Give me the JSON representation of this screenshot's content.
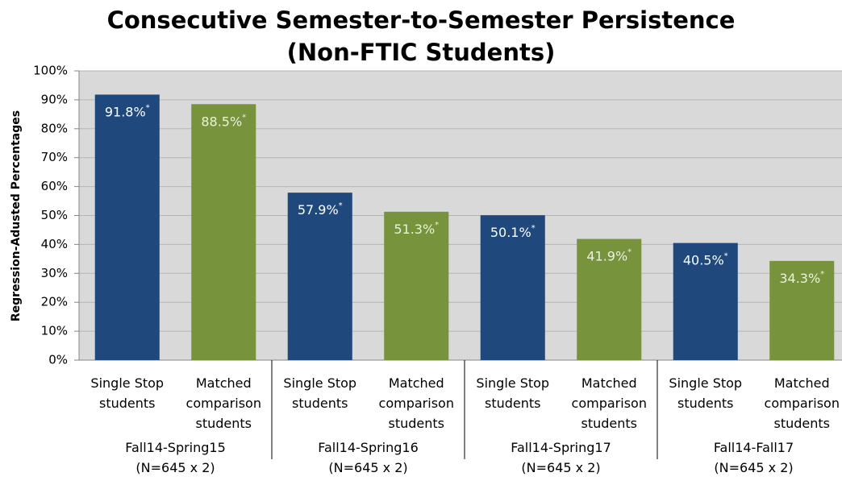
{
  "chart_data": {
    "type": "bar",
    "title": [
      "Consecutive Semester-to-Semester Persistence",
      "(Non-FTIC Students)"
    ],
    "y_label": "Regression-Adusted Percentages",
    "categories": [
      "Fall14-Spring15",
      "Fall14-Spring16",
      "Fall14-Spring17",
      "Fall14-Fall17"
    ],
    "category_sublabels": [
      "(N=645 x 2)",
      "(N=645 x 2)",
      "(N=645 x 2)",
      "(N=645 x 2)"
    ],
    "series": [
      {
        "name": "Single Stop students",
        "color": "#1f497d",
        "label_color": "#ffffff",
        "values": [
          91.8,
          57.9,
          50.1,
          40.5
        ],
        "value_labels": [
          "91.8%",
          "57.9%",
          "50.1%",
          "40.5%"
        ]
      },
      {
        "name": "Matched comparison students",
        "color": "#77933c",
        "label_color": "#ebf1de",
        "values": [
          88.5,
          51.3,
          41.9,
          34.3
        ],
        "value_labels": [
          "88.5%",
          "51.3%",
          "41.9%",
          "34.3%"
        ]
      }
    ],
    "value_label_suffix": "*",
    "ylim": [
      0,
      100
    ],
    "yticks": [
      {
        "value": 0,
        "label": "0%"
      },
      {
        "value": 10,
        "label": "10%"
      },
      {
        "value": 20,
        "label": "20%"
      },
      {
        "value": 30,
        "label": "30%"
      },
      {
        "value": 40,
        "label": "40%"
      },
      {
        "value": 50,
        "label": "50%"
      },
      {
        "value": 60,
        "label": "60%"
      },
      {
        "value": 70,
        "label": "70%"
      },
      {
        "value": 80,
        "label": "80%"
      },
      {
        "value": 90,
        "label": "90%"
      },
      {
        "value": 100,
        "label": "100%"
      }
    ],
    "grid": true
  }
}
